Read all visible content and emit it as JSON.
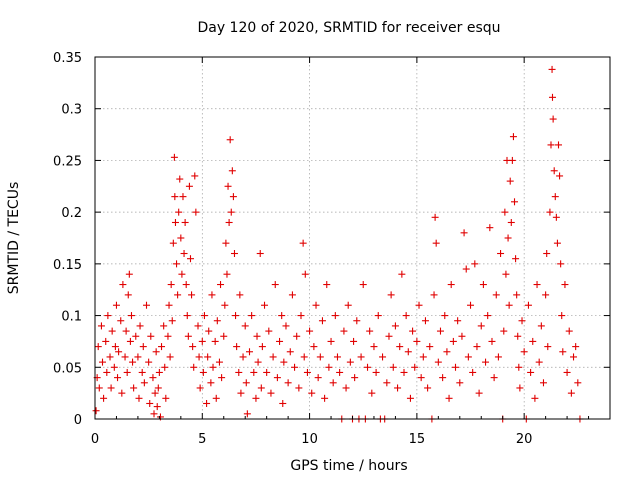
{
  "chart_data": {
    "type": "scatter",
    "title": "Day 120 of 2020, SRMTID for receiver esqu",
    "xlabel": "GPS time / hours",
    "ylabel": "SRMTID / TECUs",
    "xlim": [
      0,
      24
    ],
    "ylim": [
      0,
      0.35
    ],
    "x_ticks": [
      0,
      5,
      10,
      15,
      20
    ],
    "y_ticks": [
      0,
      0.05,
      0.1,
      0.15,
      0.2,
      0.25,
      0.3,
      0.35
    ],
    "x_tick_labels": [
      "0",
      "5",
      "10",
      "15",
      "20"
    ],
    "y_tick_labels": [
      "0",
      "0.05",
      "0.1",
      "0.15",
      "0.2",
      "0.25",
      "0.3",
      "0.35"
    ],
    "grid": true,
    "marker": "+",
    "series": [
      {
        "name": "SRMTID",
        "color": "#e00000",
        "points": [
          [
            0.05,
            0.008
          ],
          [
            0.1,
            0.04
          ],
          [
            0.15,
            0.07
          ],
          [
            0.2,
            0.03
          ],
          [
            0.3,
            0.09
          ],
          [
            0.35,
            0.055
          ],
          [
            0.4,
            0.02
          ],
          [
            0.5,
            0.075
          ],
          [
            0.55,
            0.045
          ],
          [
            0.6,
            0.1
          ],
          [
            0.7,
            0.06
          ],
          [
            0.75,
            0.03
          ],
          [
            0.8,
            0.085
          ],
          [
            0.9,
            0.05
          ],
          [
            0.95,
            0.07
          ],
          [
            1.0,
            0.11
          ],
          [
            1.05,
            0.04
          ],
          [
            1.1,
            0.065
          ],
          [
            1.2,
            0.095
          ],
          [
            1.25,
            0.025
          ],
          [
            1.3,
            0.13
          ],
          [
            1.4,
            0.06
          ],
          [
            1.45,
            0.085
          ],
          [
            1.5,
            0.045
          ],
          [
            1.55,
            0.12
          ],
          [
            1.6,
            0.14
          ],
          [
            1.65,
            0.075
          ],
          [
            1.7,
            0.1
          ],
          [
            1.75,
            0.055
          ],
          [
            1.8,
            0.03
          ],
          [
            1.9,
            0.08
          ],
          [
            2.0,
            0.06
          ],
          [
            2.05,
            0.02
          ],
          [
            2.1,
            0.09
          ],
          [
            2.2,
            0.045
          ],
          [
            2.25,
            0.07
          ],
          [
            2.3,
            0.035
          ],
          [
            2.4,
            0.11
          ],
          [
            2.5,
            0.055
          ],
          [
            2.55,
            0.015
          ],
          [
            2.6,
            0.08
          ],
          [
            2.7,
            0.04
          ],
          [
            2.75,
            0.005
          ],
          [
            2.8,
            0.025
          ],
          [
            2.85,
            0.065
          ],
          [
            2.9,
            0.012
          ],
          [
            2.95,
            0.03
          ],
          [
            3.0,
            0.045
          ],
          [
            3.05,
            0.002
          ],
          [
            3.1,
            0.07
          ],
          [
            3.2,
            0.09
          ],
          [
            3.25,
            0.05
          ],
          [
            3.3,
            0.02
          ],
          [
            3.4,
            0.08
          ],
          [
            3.45,
            0.11
          ],
          [
            3.5,
            0.06
          ],
          [
            3.55,
            0.13
          ],
          [
            3.6,
            0.095
          ],
          [
            3.65,
            0.17
          ],
          [
            3.7,
            0.253
          ],
          [
            3.72,
            0.215
          ],
          [
            3.75,
            0.19
          ],
          [
            3.8,
            0.15
          ],
          [
            3.85,
            0.12
          ],
          [
            3.9,
            0.2
          ],
          [
            3.95,
            0.232
          ],
          [
            4.0,
            0.175
          ],
          [
            4.05,
            0.14
          ],
          [
            4.1,
            0.215
          ],
          [
            4.15,
            0.16
          ],
          [
            4.2,
            0.19
          ],
          [
            4.25,
            0.13
          ],
          [
            4.3,
            0.1
          ],
          [
            4.35,
            0.08
          ],
          [
            4.4,
            0.225
          ],
          [
            4.45,
            0.155
          ],
          [
            4.5,
            0.12
          ],
          [
            4.55,
            0.07
          ],
          [
            4.6,
            0.05
          ],
          [
            4.65,
            0.235
          ],
          [
            4.7,
            0.2
          ],
          [
            4.8,
            0.09
          ],
          [
            4.85,
            0.06
          ],
          [
            4.9,
            0.03
          ],
          [
            5.0,
            0.075
          ],
          [
            5.05,
            0.045
          ],
          [
            5.1,
            0.1
          ],
          [
            5.2,
            0.015
          ],
          [
            5.25,
            0.06
          ],
          [
            5.3,
            0.085
          ],
          [
            5.4,
            0.035
          ],
          [
            5.45,
            0.12
          ],
          [
            5.5,
            0.05
          ],
          [
            5.6,
            0.075
          ],
          [
            5.65,
            0.02
          ],
          [
            5.7,
            0.095
          ],
          [
            5.8,
            0.055
          ],
          [
            5.85,
            0.13
          ],
          [
            5.9,
            0.04
          ],
          [
            6.0,
            0.08
          ],
          [
            6.05,
            0.11
          ],
          [
            6.1,
            0.17
          ],
          [
            6.15,
            0.14
          ],
          [
            6.2,
            0.225
          ],
          [
            6.25,
            0.19
          ],
          [
            6.3,
            0.27
          ],
          [
            6.35,
            0.2
          ],
          [
            6.4,
            0.24
          ],
          [
            6.45,
            0.215
          ],
          [
            6.5,
            0.16
          ],
          [
            6.55,
            0.1
          ],
          [
            6.6,
            0.07
          ],
          [
            6.7,
            0.045
          ],
          [
            6.75,
            0.12
          ],
          [
            6.8,
            0.025
          ],
          [
            6.9,
            0.06
          ],
          [
            7.0,
            0.09
          ],
          [
            7.05,
            0.035
          ],
          [
            7.1,
            0.005
          ],
          [
            7.2,
            0.065
          ],
          [
            7.3,
            0.1
          ],
          [
            7.4,
            0.045
          ],
          [
            7.5,
            0.02
          ],
          [
            7.55,
            0.08
          ],
          [
            7.6,
            0.055
          ],
          [
            7.7,
            0.16
          ],
          [
            7.75,
            0.03
          ],
          [
            7.8,
            0.07
          ],
          [
            7.9,
            0.11
          ],
          [
            8.0,
            0.045
          ],
          [
            8.1,
            0.085
          ],
          [
            8.2,
            0.025
          ],
          [
            8.3,
            0.06
          ],
          [
            8.4,
            0.13
          ],
          [
            8.5,
            0.04
          ],
          [
            8.6,
            0.075
          ],
          [
            8.7,
            0.1
          ],
          [
            8.75,
            0.015
          ],
          [
            8.8,
            0.055
          ],
          [
            8.9,
            0.09
          ],
          [
            9.0,
            0.035
          ],
          [
            9.1,
            0.065
          ],
          [
            9.2,
            0.12
          ],
          [
            9.3,
            0.05
          ],
          [
            9.4,
            0.08
          ],
          [
            9.5,
            0.03
          ],
          [
            9.6,
            0.1
          ],
          [
            9.7,
            0.17
          ],
          [
            9.75,
            0.06
          ],
          [
            9.8,
            0.14
          ],
          [
            9.9,
            0.045
          ],
          [
            10.0,
            0.085
          ],
          [
            10.1,
            0.025
          ],
          [
            10.2,
            0.07
          ],
          [
            10.3,
            0.11
          ],
          [
            10.4,
            0.04
          ],
          [
            10.5,
            0.06
          ],
          [
            10.6,
            0.095
          ],
          [
            10.7,
            0.02
          ],
          [
            10.8,
            0.13
          ],
          [
            10.9,
            0.05
          ],
          [
            11.0,
            0.075
          ],
          [
            11.1,
            0.035
          ],
          [
            11.2,
            0.1
          ],
          [
            11.3,
            0.06
          ],
          [
            11.4,
            0.045
          ],
          [
            11.5,
            0.0
          ],
          [
            11.6,
            0.085
          ],
          [
            11.7,
            0.03
          ],
          [
            11.8,
            0.11
          ],
          [
            11.9,
            0.055
          ],
          [
            12.0,
            0.0
          ],
          [
            12.05,
            0.075
          ],
          [
            12.1,
            0.04
          ],
          [
            12.2,
            0.095
          ],
          [
            12.3,
            0.0
          ],
          [
            12.4,
            0.06
          ],
          [
            12.5,
            0.13
          ],
          [
            12.6,
            0.0
          ],
          [
            12.7,
            0.05
          ],
          [
            12.8,
            0.085
          ],
          [
            12.9,
            0.025
          ],
          [
            13.0,
            0.07
          ],
          [
            13.1,
            0.045
          ],
          [
            13.2,
            0.1
          ],
          [
            13.3,
            0.0
          ],
          [
            13.4,
            0.06
          ],
          [
            13.5,
            0.0
          ],
          [
            13.6,
            0.035
          ],
          [
            13.7,
            0.08
          ],
          [
            13.8,
            0.12
          ],
          [
            13.9,
            0.05
          ],
          [
            14.0,
            0.09
          ],
          [
            14.1,
            0.03
          ],
          [
            14.2,
            0.07
          ],
          [
            14.3,
            0.14
          ],
          [
            14.4,
            0.045
          ],
          [
            14.5,
            0.1
          ],
          [
            14.6,
            0.065
          ],
          [
            14.7,
            0.02
          ],
          [
            14.8,
            0.085
          ],
          [
            14.9,
            0.05
          ],
          [
            15.0,
            0.075
          ],
          [
            15.1,
            0.11
          ],
          [
            15.2,
            0.04
          ],
          [
            15.3,
            0.06
          ],
          [
            15.4,
            0.095
          ],
          [
            15.5,
            0.03
          ],
          [
            15.6,
            0.07
          ],
          [
            15.7,
            0.0
          ],
          [
            15.8,
            0.12
          ],
          [
            15.85,
            0.195
          ],
          [
            15.9,
            0.17
          ],
          [
            16.0,
            0.055
          ],
          [
            16.1,
            0.085
          ],
          [
            16.2,
            0.04
          ],
          [
            16.3,
            0.1
          ],
          [
            16.4,
            0.065
          ],
          [
            16.5,
            0.02
          ],
          [
            16.6,
            0.13
          ],
          [
            16.7,
            0.075
          ],
          [
            16.8,
            0.05
          ],
          [
            16.9,
            0.095
          ],
          [
            17.0,
            0.035
          ],
          [
            17.1,
            0.08
          ],
          [
            17.2,
            0.18
          ],
          [
            17.3,
            0.145
          ],
          [
            17.4,
            0.06
          ],
          [
            17.5,
            0.11
          ],
          [
            17.6,
            0.045
          ],
          [
            17.7,
            0.15
          ],
          [
            17.8,
            0.07
          ],
          [
            17.9,
            0.025
          ],
          [
            18.0,
            0.09
          ],
          [
            18.1,
            0.13
          ],
          [
            18.2,
            0.055
          ],
          [
            18.3,
            0.1
          ],
          [
            18.4,
            0.185
          ],
          [
            18.5,
            0.075
          ],
          [
            18.6,
            0.04
          ],
          [
            18.7,
            0.12
          ],
          [
            18.8,
            0.06
          ],
          [
            18.9,
            0.16
          ],
          [
            19.0,
            0.0
          ],
          [
            19.05,
            0.085
          ],
          [
            19.1,
            0.2
          ],
          [
            19.15,
            0.14
          ],
          [
            19.2,
            0.25
          ],
          [
            19.25,
            0.175
          ],
          [
            19.3,
            0.11
          ],
          [
            19.35,
            0.23
          ],
          [
            19.4,
            0.19
          ],
          [
            19.45,
            0.25
          ],
          [
            19.5,
            0.273
          ],
          [
            19.55,
            0.21
          ],
          [
            19.6,
            0.155
          ],
          [
            19.65,
            0.12
          ],
          [
            19.7,
            0.08
          ],
          [
            19.75,
            0.05
          ],
          [
            19.8,
            0.03
          ],
          [
            19.9,
            0.095
          ],
          [
            20.0,
            0.065
          ],
          [
            20.1,
            0.0
          ],
          [
            20.2,
            0.11
          ],
          [
            20.3,
            0.045
          ],
          [
            20.4,
            0.075
          ],
          [
            20.5,
            0.02
          ],
          [
            20.6,
            0.13
          ],
          [
            20.7,
            0.055
          ],
          [
            20.8,
            0.09
          ],
          [
            20.9,
            0.035
          ],
          [
            21.0,
            0.12
          ],
          [
            21.05,
            0.16
          ],
          [
            21.1,
            0.07
          ],
          [
            21.2,
            0.2
          ],
          [
            21.25,
            0.265
          ],
          [
            21.3,
            0.338
          ],
          [
            21.32,
            0.311
          ],
          [
            21.35,
            0.29
          ],
          [
            21.4,
            0.24
          ],
          [
            21.45,
            0.215
          ],
          [
            21.5,
            0.195
          ],
          [
            21.55,
            0.17
          ],
          [
            21.6,
            0.265
          ],
          [
            21.65,
            0.235
          ],
          [
            21.7,
            0.15
          ],
          [
            21.75,
            0.1
          ],
          [
            21.8,
            0.065
          ],
          [
            21.9,
            0.13
          ],
          [
            22.0,
            0.045
          ],
          [
            22.1,
            0.085
          ],
          [
            22.2,
            0.025
          ],
          [
            22.3,
            0.06
          ],
          [
            22.4,
            0.07
          ],
          [
            22.5,
            0.035
          ],
          [
            22.6,
            0.0
          ]
        ]
      }
    ]
  }
}
